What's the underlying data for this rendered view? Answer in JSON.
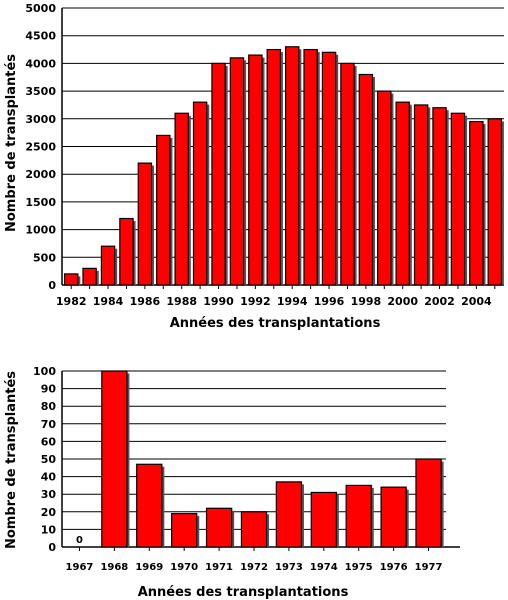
{
  "chart_data": [
    {
      "type": "bar",
      "xlabel": "Années des transplantations",
      "ylabel": "Nombre de transplantés",
      "ylim": [
        0,
        5000
      ],
      "y_ticks": [
        0,
        500,
        1000,
        1500,
        2000,
        2500,
        3000,
        3500,
        4000,
        4500,
        5000
      ],
      "grid": true,
      "categories": [
        "1982",
        "1983",
        "1984",
        "1985",
        "1986",
        "1987",
        "1988",
        "1989",
        "1990",
        "1991",
        "1992",
        "1993",
        "1994",
        "1995",
        "1996",
        "1997",
        "1998",
        "1999",
        "2000",
        "2001",
        "2002",
        "2003",
        "2004",
        "2005"
      ],
      "x_tick_labels": [
        "1982",
        "1984",
        "1986",
        "1988",
        "1990",
        "1992",
        "1994",
        "1996",
        "1998",
        "2000",
        "2002",
        "2004"
      ],
      "values": [
        200,
        300,
        700,
        1200,
        2200,
        2700,
        3100,
        3300,
        4000,
        4100,
        4150,
        4250,
        4300,
        4250,
        4200,
        4000,
        3800,
        3500,
        3300,
        3250,
        3200,
        3100,
        2950,
        3000
      ]
    },
    {
      "type": "bar",
      "xlabel": "Années des transplantations",
      "ylabel": "Nombre de transplantés",
      "ylim": [
        0,
        100
      ],
      "y_ticks": [
        0,
        10,
        20,
        30,
        40,
        50,
        60,
        70,
        80,
        90,
        100
      ],
      "grid": true,
      "categories": [
        "1967",
        "1968",
        "1969",
        "1970",
        "1971",
        "1972",
        "1973",
        "1974",
        "1975",
        "1976",
        "1977"
      ],
      "values": [
        0,
        100,
        47,
        19,
        22,
        20,
        37,
        31,
        35,
        34,
        50
      ],
      "data_labels": [
        {
          "category": "1967",
          "text": "0"
        }
      ]
    }
  ]
}
